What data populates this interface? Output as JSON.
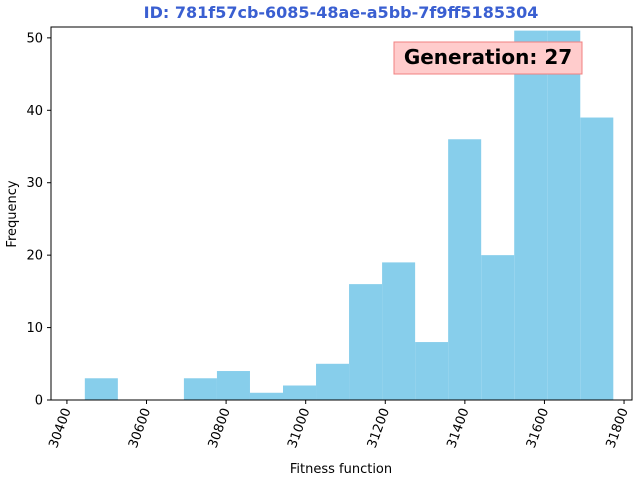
{
  "chart_data": {
    "type": "bar",
    "title": "ID: 781f57cb-6085-48ae-a5bb-7f9ff5185304",
    "title_color": "#3a5fd1",
    "xlabel": "Fitness function",
    "ylabel": "Frequency",
    "annotation": "Generation: 27",
    "annotation_bg": "#ffcccc",
    "annotation_border": "#f08080",
    "bar_color": "#87ceeb",
    "xlim": [
      30360,
      31820
    ],
    "ylim": [
      0,
      51.5
    ],
    "xticks": [
      30400,
      30600,
      30800,
      31000,
      31200,
      31400,
      31600,
      31800
    ],
    "yticks": [
      0,
      10,
      20,
      30,
      40,
      50
    ],
    "bins": [
      {
        "x0": 30445,
        "x1": 30528,
        "count": 3
      },
      {
        "x0": 30528,
        "x1": 30611,
        "count": 0
      },
      {
        "x0": 30611,
        "x1": 30694,
        "count": 0
      },
      {
        "x0": 30694,
        "x1": 30777,
        "count": 3
      },
      {
        "x0": 30777,
        "x1": 30860,
        "count": 4
      },
      {
        "x0": 30860,
        "x1": 30943,
        "count": 1
      },
      {
        "x0": 30943,
        "x1": 31026,
        "count": 2
      },
      {
        "x0": 31026,
        "x1": 31109,
        "count": 5
      },
      {
        "x0": 31109,
        "x1": 31192,
        "count": 16
      },
      {
        "x0": 31192,
        "x1": 31275,
        "count": 19
      },
      {
        "x0": 31275,
        "x1": 31358,
        "count": 8
      },
      {
        "x0": 31358,
        "x1": 31441,
        "count": 36
      },
      {
        "x0": 31441,
        "x1": 31524,
        "count": 20
      },
      {
        "x0": 31524,
        "x1": 31607,
        "count": 51
      },
      {
        "x0": 31607,
        "x1": 31690,
        "count": 51
      },
      {
        "x0": 31690,
        "x1": 31773,
        "count": 39
      }
    ]
  }
}
